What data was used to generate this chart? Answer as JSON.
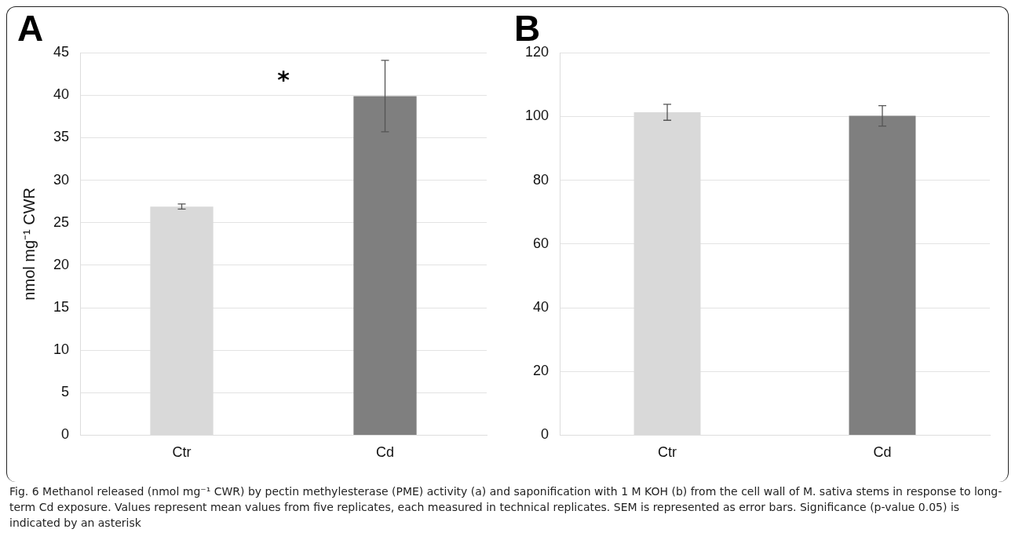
{
  "chart_data": [
    {
      "type": "bar",
      "title": "A",
      "ylabel": "nmol mg⁻¹ CWR",
      "categories": [
        "Ctr",
        "Cd"
      ],
      "values": [
        26.9,
        39.9
      ],
      "colors": [
        "#d9d9d9",
        "#7f7f7f"
      ],
      "errors": [
        0.3,
        4.2
      ],
      "ylim": [
        0,
        45
      ],
      "yticks": [
        0,
        5,
        10,
        15,
        20,
        25,
        30,
        35,
        40,
        45
      ],
      "grid": "y",
      "annotations": [
        "*"
      ]
    },
    {
      "type": "bar",
      "title": "B",
      "categories": [
        "Ctr",
        "Cd"
      ],
      "values": [
        101.3,
        100.2
      ],
      "colors": [
        "#d9d9d9",
        "#7f7f7f"
      ],
      "errors": [
        2.5,
        3.2
      ],
      "ylim": [
        0,
        120
      ],
      "yticks": [
        0,
        20,
        40,
        60,
        80,
        100,
        120
      ],
      "grid": "y",
      "annotations": [
        "Fig. 6 Methanol released (nmol mg⁻¹ CWR) by pectin methylesterase (PME) activity (a) and saponification with 1 M KOH (b) from the cell wall of M. sativa stems in response to long-term Cd exposure. Values represent mean values from five replicates, each measured in technical replicates. SEM is represented as error bars. Significance (p-value 0.05) is indicated by an asterisk"
      ]
    }
  ]
}
